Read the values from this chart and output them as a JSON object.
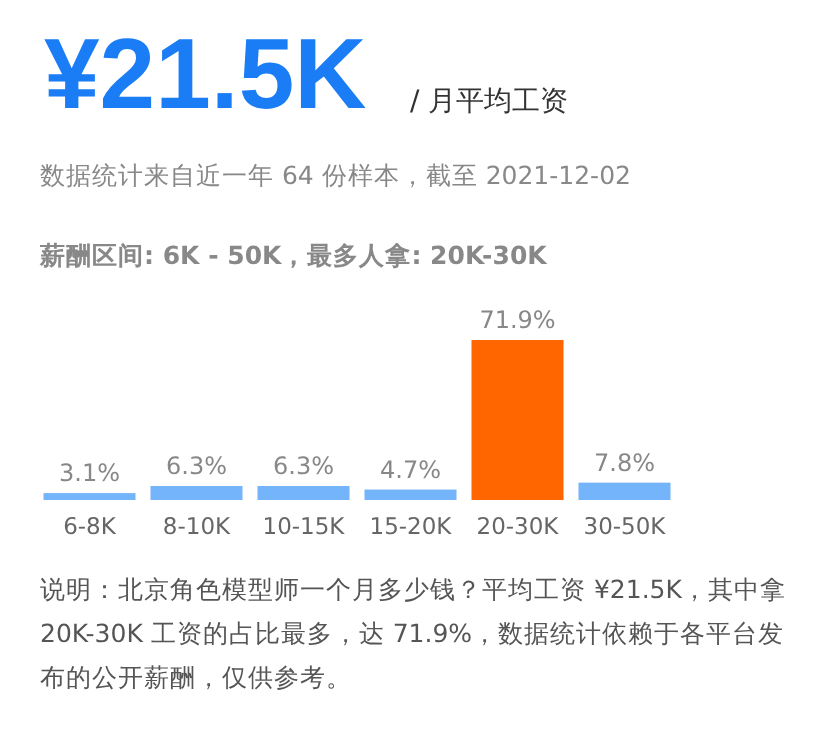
{
  "chart_data": {
    "type": "bar",
    "title": "¥21.5K",
    "subtitle": "/ 月平均工资",
    "annotations": [
      "数据统计来自近一年 64 份样本，截至 2021-12-02",
      "薪酬区间: 6K - 50K，最多人拿: 20K-30K",
      "说明：北京角色模型师一个月多少钱？平均工资 ¥21.5K，其中拿 20K-30K 工资的占比最多，达 71.9%，数据统计依赖于各平台发布的公开薪酬，仅供参考。"
    ],
    "categories": [
      "6-8K",
      "8-10K",
      "10-15K",
      "15-20K",
      "20-30K",
      "30-50K"
    ],
    "values": [
      3.1,
      6.3,
      6.3,
      4.7,
      71.9,
      7.8
    ],
    "colors": [
      "#74b4fa",
      "#74b4fa",
      "#74b4fa",
      "#74b4fa",
      "#ff6600",
      "#74b4fa"
    ],
    "value_labels": [
      "3.1%",
      "6.3%",
      "6.3%",
      "4.7%",
      "71.9%",
      "7.8%"
    ]
  }
}
